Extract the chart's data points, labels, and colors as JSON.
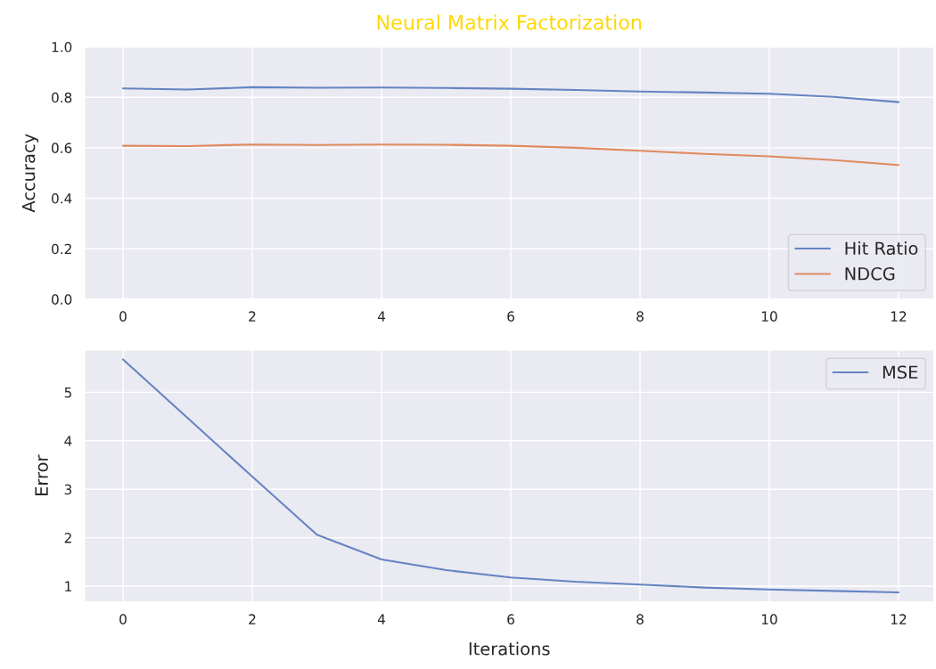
{
  "chart_data": [
    {
      "type": "line",
      "title": "Neural Matrix Factorization",
      "ylabel": "Accuracy",
      "x": [
        0,
        1,
        2,
        3,
        4,
        5,
        6,
        7,
        8,
        9,
        10,
        11,
        12
      ],
      "series": [
        {
          "name": "Hit Ratio",
          "color": "#6584c2",
          "values": [
            0.835,
            0.831,
            0.84,
            0.838,
            0.839,
            0.837,
            0.834,
            0.829,
            0.823,
            0.819,
            0.814,
            0.802,
            0.781
          ]
        },
        {
          "name": "NDCG",
          "color": "#e08a60",
          "values": [
            0.608,
            0.607,
            0.613,
            0.611,
            0.613,
            0.612,
            0.608,
            0.6,
            0.588,
            0.576,
            0.566,
            0.551,
            0.532
          ]
        }
      ],
      "xlim": [
        -0.6,
        12.55
      ],
      "xticks": [
        0,
        2,
        4,
        6,
        8,
        10,
        12
      ],
      "ylim": [
        0,
        1
      ],
      "yticks": [
        {
          "value": 0,
          "label": "0.0"
        },
        0.2,
        0.4,
        0.6,
        0.8,
        {
          "value": 1,
          "label": "1.0"
        }
      ],
      "grid": true,
      "legend": "bottom right"
    },
    {
      "type": "line",
      "xlabel": "Iterations",
      "ylabel": "Error",
      "x": [
        0,
        1,
        2,
        3,
        4,
        5,
        6,
        7,
        8,
        9,
        10,
        11,
        12
      ],
      "series": [
        {
          "name": "MSE",
          "color": "#6584c2",
          "values": [
            5.68,
            4.47,
            3.26,
            2.06,
            1.55,
            1.33,
            1.18,
            1.09,
            1.03,
            0.97,
            0.93,
            0.9,
            0.87
          ]
        }
      ],
      "xlim": [
        -0.6,
        12.55
      ],
      "xticks": [
        0,
        2,
        4,
        6,
        8,
        10,
        12
      ],
      "ylim": [
        0.67,
        5.88
      ],
      "yticks": [
        1,
        2,
        3,
        4,
        5
      ],
      "grid": true,
      "legend": "top right"
    }
  ]
}
